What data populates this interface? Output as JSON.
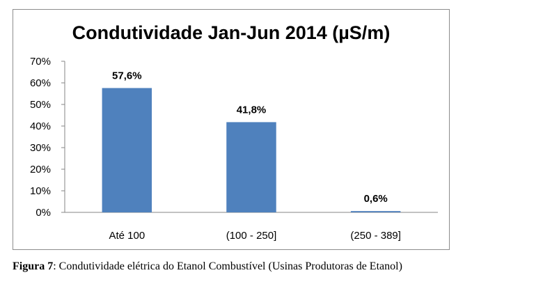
{
  "chart_data": {
    "type": "bar",
    "title": "Condutividade Jan-Jun 2014 (µS/m)",
    "categories": [
      "Até 100",
      "(100 - 250]",
      "(250 - 389]"
    ],
    "values": [
      57.6,
      41.8,
      0.6
    ],
    "data_labels": [
      "57,6%",
      "41,8%",
      "0,6%"
    ],
    "y_ticks": [
      "0%",
      "10%",
      "20%",
      "30%",
      "40%",
      "50%",
      "60%",
      "70%"
    ],
    "ylim": [
      0,
      70
    ],
    "grid": false,
    "legend": "none",
    "bar_color": "#4f81bd",
    "axis_color": "#868686"
  },
  "caption": {
    "label": "Figura 7",
    "text": ": Condutividade elétrica do Etanol Combustível (Usinas Produtoras de Etanol)"
  }
}
